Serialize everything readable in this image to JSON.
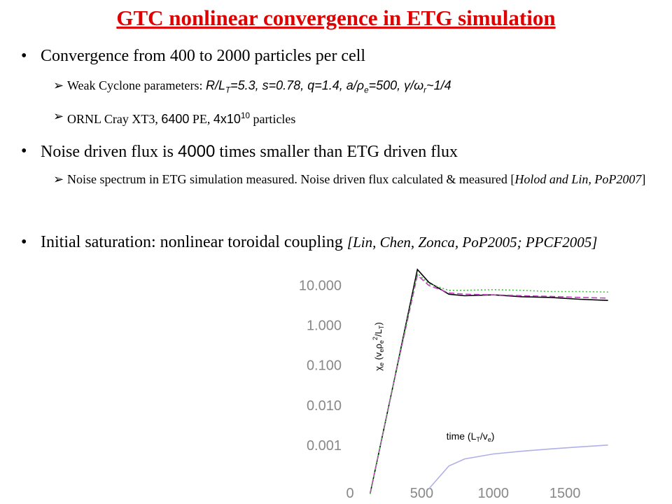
{
  "slide": {
    "title": "GTC nonlinear convergence in ETG simulation",
    "bullets": [
      {
        "text": [
          "Convergence  from 400 to 2000 particles per cell"
        ],
        "subs": [
          [
            "Weak Cyclone parameters: ",
            "R/L",
            "T",
            "=5.3, s=0.78, q=1.4, a/ρ",
            "e",
            "=500, γ/ω",
            "r",
            "~1/4"
          ],
          [
            "ORNL Cray XT3,  ",
            "6400",
            " PE, ",
            "4x10",
            "10",
            " particles"
          ]
        ]
      },
      {
        "text": [
          "Noise driven flux is ",
          "4000",
          " times smaller than ETG driven flux"
        ],
        "subs": [
          [
            "Noise spectrum in ETG simulation measured. Noise driven flux calculated & measured [",
            "Holod and Lin, PoP2007",
            "]"
          ]
        ]
      },
      {
        "text": [
          "Initial saturation: nonlinear toroidal coupling ",
          "[Lin, Chen, Zonca, PoP2005; PPCF2005]"
        ],
        "subs": []
      }
    ]
  },
  "chart_data": {
    "type": "line",
    "y_label": [
      "χ",
      "e",
      " (v",
      "e",
      "ρ",
      "e",
      "2",
      "/L",
      "T",
      ")"
    ],
    "x_label": [
      "time (L",
      "T",
      "/v",
      "e",
      ")"
    ],
    "x": [
      140,
      300,
      470,
      550,
      690,
      800,
      1000,
      1200,
      1400,
      1600,
      1800
    ],
    "series": [
      {
        "color": "#000000",
        "dash": "solid",
        "values": [
          6e-05,
          0.03,
          25,
          12,
          6,
          5.5,
          5.8,
          5.2,
          5,
          4.5,
          4.2
        ]
      },
      {
        "color": "#c03cc0",
        "dash": "dashed",
        "values": [
          6e-05,
          0.03,
          18,
          10,
          6.5,
          6,
          5.8,
          5.5,
          5.3,
          5,
          4.8
        ]
      },
      {
        "color": "#40c040",
        "dash": "dotted",
        "values": [
          6e-05,
          0.03,
          20,
          11,
          7.5,
          7.5,
          7.8,
          7.5,
          7,
          7,
          6.8
        ]
      },
      {
        "color": "#b0b0e8",
        "dash": "solid",
        "values": [
          null,
          null,
          null,
          8e-05,
          0.0003,
          0.00045,
          0.0006,
          0.0007,
          0.0008,
          0.0009,
          0.001
        ]
      }
    ],
    "xlim": [
      0,
      1880
    ],
    "ylim": [
      5e-05,
      25
    ],
    "log_y": true,
    "grid": false,
    "xticks": [
      0,
      500,
      1000,
      1500
    ],
    "yticks": [
      {
        "value": 0.001,
        "label": "0.001"
      },
      {
        "value": 0.01,
        "label": "0.010"
      },
      {
        "value": 0.1,
        "label": "0.100"
      },
      {
        "value": 1,
        "label": "1.000"
      },
      {
        "value": 10,
        "label": "10.000"
      }
    ]
  }
}
